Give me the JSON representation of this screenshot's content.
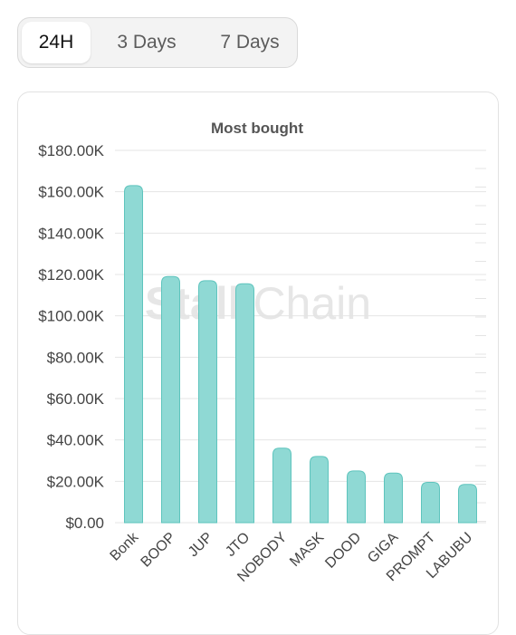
{
  "tabs": [
    {
      "label": "24H",
      "active": true
    },
    {
      "label": "3 Days",
      "active": false
    },
    {
      "label": "7 Days",
      "active": false
    }
  ],
  "watermark": {
    "part1": "Stalk",
    "part2": "Chain"
  },
  "colors": {
    "bar_fill": "#8fd9d4",
    "bar_stroke": "#5ec4bd",
    "grid": "#e4e4e4"
  },
  "chart_data": {
    "type": "bar",
    "title": "Most bought",
    "categories": [
      "Bonk",
      "BOOP",
      "JUP",
      "JTO",
      "NOBODY",
      "MASK",
      "DOOD",
      "GIGA",
      "PROMPT",
      "LABUBU"
    ],
    "values": [
      163000,
      119000,
      117000,
      115500,
      36000,
      32000,
      25000,
      24000,
      19500,
      18500
    ],
    "ylim": [
      0,
      180000
    ],
    "yticks": [
      0,
      20000,
      40000,
      60000,
      80000,
      100000,
      120000,
      140000,
      160000,
      180000
    ],
    "ytick_labels": [
      "$0.00",
      "$20.00K",
      "$40.00K",
      "$60.00K",
      "$80.00K",
      "$100.00K",
      "$120.00K",
      "$140.00K",
      "$160.00K",
      "$180.00K"
    ],
    "grid": true,
    "legend": "none"
  }
}
